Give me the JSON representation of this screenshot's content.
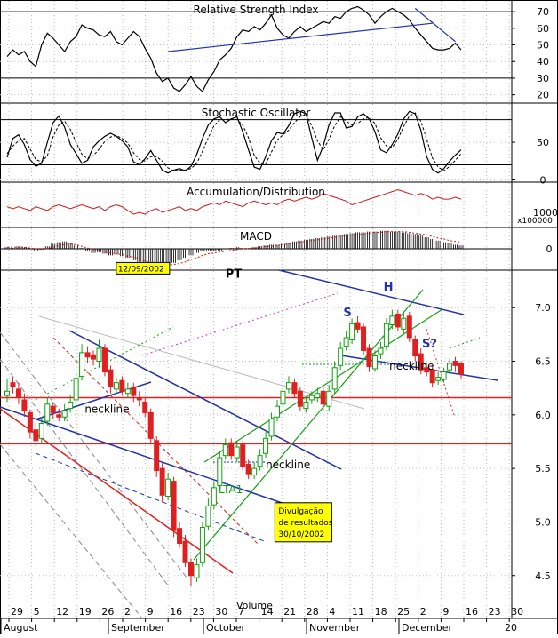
{
  "chart_data": [
    {
      "type": "line",
      "title": "Relative Strength Index",
      "y_ticks": [
        20,
        30,
        40,
        50,
        60,
        70
      ],
      "ylim": [
        15,
        77
      ],
      "reference_levels": [
        30,
        70
      ],
      "series": [
        {
          "values": [
            43,
            47,
            44,
            46,
            40,
            37,
            50,
            57,
            54,
            50,
            46,
            52,
            55,
            62,
            60,
            59,
            56,
            55,
            58,
            52,
            50,
            54,
            58,
            55,
            48,
            42,
            33,
            28,
            30,
            24,
            22,
            26,
            31,
            25,
            22,
            29,
            34,
            41,
            44,
            48,
            55,
            59,
            58,
            61,
            59,
            63,
            68,
            60,
            56,
            54,
            58,
            61,
            58,
            60,
            62,
            64,
            63,
            67,
            66,
            70,
            72,
            73,
            71,
            68,
            63,
            67,
            70,
            72,
            70,
            68,
            65,
            60,
            56,
            52,
            48,
            47,
            47,
            48,
            51,
            47
          ]
        }
      ],
      "annotations": [
        {
          "type": "trendline",
          "from": [
            28,
            46
          ],
          "to": [
            74,
            63
          ],
          "color": "#2233aa"
        },
        {
          "type": "trendline",
          "from": [
            71,
            72
          ],
          "to": [
            78,
            52
          ],
          "color": "#2233aa"
        }
      ]
    },
    {
      "type": "line",
      "title": "Stochastic Oscillator",
      "y_ticks": [
        0,
        50
      ],
      "ylim": [
        -3,
        102
      ],
      "reference_levels": [
        20,
        80
      ],
      "series": [
        {
          "values": [
            30,
            55,
            60,
            47,
            27,
            18,
            22,
            50,
            76,
            85,
            70,
            47,
            35,
            22,
            26,
            44,
            52,
            58,
            62,
            58,
            52,
            44,
            24,
            20,
            28,
            39,
            26,
            13,
            9,
            13,
            15,
            12,
            18,
            34,
            55,
            73,
            81,
            84,
            76,
            81,
            84,
            64,
            40,
            17,
            14,
            31,
            52,
            63,
            61,
            72,
            88,
            91,
            88,
            56,
            26,
            45,
            73,
            89,
            89,
            69,
            71,
            84,
            88,
            81,
            64,
            40,
            36,
            47,
            61,
            81,
            91,
            88,
            66,
            31,
            14,
            9,
            15,
            25,
            33,
            40
          ]
        },
        {
          "values": [
            35,
            45,
            52,
            55,
            41,
            27,
            24,
            32,
            57,
            73,
            78,
            67,
            50,
            34,
            28,
            32,
            41,
            51,
            57,
            59,
            55,
            49,
            36,
            27,
            25,
            31,
            31,
            25,
            16,
            12,
            13,
            13,
            15,
            22,
            38,
            56,
            72,
            80,
            80,
            81,
            80,
            73,
            56,
            33,
            22,
            21,
            37,
            53,
            60,
            66,
            76,
            84,
            87,
            72,
            52,
            40,
            54,
            72,
            84,
            78,
            73,
            75,
            81,
            83,
            75,
            56,
            45,
            43,
            54,
            71,
            85,
            89,
            78,
            54,
            29,
            17,
            12,
            18,
            26,
            35
          ]
        }
      ]
    },
    {
      "type": "line",
      "title": "Accumulation/Distribution",
      "y_ticks": [
        1000
      ],
      "y_tick_suffix": "x100000",
      "ylim": [
        -12,
        12
      ],
      "series": [
        {
          "values": [
            -1,
            -2,
            -1,
            -2,
            -3,
            -1,
            -2,
            -3,
            -1,
            0,
            -1,
            -2,
            -1,
            0,
            -1,
            -2,
            -1,
            -3,
            -1,
            0,
            -1,
            -3,
            -5,
            -4,
            -5,
            -3,
            -2,
            -4,
            -3,
            -2,
            -1,
            -3,
            -2,
            -3,
            -1,
            0,
            1,
            0,
            2,
            1,
            0,
            -1,
            1,
            2,
            1,
            0,
            1,
            0,
            2,
            3,
            2,
            3,
            4,
            3,
            4,
            6,
            5,
            4,
            3,
            2,
            0,
            1,
            2,
            3,
            4,
            5,
            6,
            7,
            8,
            7,
            6,
            5,
            6,
            5,
            3,
            4,
            3,
            3,
            4,
            3
          ]
        }
      ]
    },
    {
      "type": "bar",
      "title": "MACD",
      "y_ticks": [
        0
      ],
      "ylim": [
        -0.26,
        0.26
      ],
      "series": [
        {
          "values": [
            0.02,
            0.01,
            0.03,
            0.02,
            0.0,
            -0.02,
            -0.01,
            0.03,
            0.06,
            0.08,
            0.09,
            0.07,
            0.04,
            0.01,
            -0.02,
            -0.05,
            -0.04,
            -0.06,
            -0.08,
            -0.07,
            -0.09,
            -0.11,
            -0.14,
            -0.16,
            -0.19,
            -0.22,
            -0.24,
            -0.22,
            -0.2,
            -0.17,
            -0.14,
            -0.11,
            -0.08,
            -0.05,
            -0.03,
            -0.02,
            -0.03,
            -0.02,
            0.0,
            0.01,
            0.02,
            0.01,
            0.01,
            0.02,
            0.03,
            0.04,
            0.05,
            0.05,
            0.06,
            0.07,
            0.09,
            0.1,
            0.11,
            0.12,
            0.13,
            0.14,
            0.15,
            0.16,
            0.17,
            0.18,
            0.19,
            0.2,
            0.2,
            0.21,
            0.21,
            0.22,
            0.22,
            0.21,
            0.21,
            0.2,
            0.19,
            0.18,
            0.16,
            0.14,
            0.12,
            0.1,
            0.08,
            0.07,
            0.05,
            0.04
          ]
        },
        {
          "values": [
            0.02,
            0.02,
            0.02,
            0.02,
            0.01,
            0.0,
            -0.01,
            0.0,
            0.02,
            0.04,
            0.05,
            0.06,
            0.05,
            0.03,
            0.01,
            -0.01,
            -0.02,
            -0.04,
            -0.05,
            -0.06,
            -0.07,
            -0.09,
            -0.1,
            -0.12,
            -0.15,
            -0.17,
            -0.19,
            -0.2,
            -0.2,
            -0.19,
            -0.18,
            -0.16,
            -0.13,
            -0.11,
            -0.08,
            -0.06,
            -0.05,
            -0.04,
            -0.03,
            -0.02,
            -0.01,
            0.0,
            0.0,
            0.01,
            0.02,
            0.03,
            0.03,
            0.04,
            0.05,
            0.06,
            0.07,
            0.08,
            0.09,
            0.1,
            0.11,
            0.12,
            0.13,
            0.14,
            0.15,
            0.16,
            0.17,
            0.17,
            0.18,
            0.19,
            0.2,
            0.2,
            0.21,
            0.21,
            0.21,
            0.21,
            0.2,
            0.19,
            0.18,
            0.17,
            0.15,
            0.13,
            0.12,
            0.1,
            0.09,
            0.08
          ]
        }
      ]
    },
    {
      "type": "candlestick",
      "y_ticks": [
        4.5,
        5.0,
        5.5,
        6.0,
        6.5,
        7.0
      ],
      "ylim": [
        4.1,
        7.35
      ],
      "x_ticks": [
        "29",
        "5",
        "12",
        "19",
        "26",
        "2",
        "9",
        "16",
        "23",
        "30",
        "7",
        "14",
        "21",
        "28",
        "4",
        "11",
        "18",
        "25",
        "2",
        "9",
        "16",
        "23",
        "30"
      ],
      "x_extra_tick": "20",
      "months": [
        "August",
        "September",
        "October",
        "November",
        "December"
      ],
      "bottom_label": "Volume",
      "series": [
        {
          "name": "close",
          "values": [
            6.22,
            6.26,
            6.16,
            6.04,
            5.84,
            5.76,
            5.92,
            6.1,
            6.02,
            5.98,
            6.04,
            6.12,
            6.34,
            6.58,
            6.54,
            6.52,
            6.62,
            6.4,
            6.26,
            6.3,
            6.22,
            6.24,
            6.18,
            6.14,
            6.02,
            5.78,
            5.48,
            5.25,
            5.4,
            4.92,
            4.8,
            4.62,
            4.5,
            4.6,
            4.95,
            5.15,
            5.32,
            5.6,
            5.72,
            5.62,
            5.7,
            5.52,
            5.45,
            5.5,
            5.62,
            5.78,
            5.96,
            6.08,
            6.22,
            6.3,
            6.2,
            6.08,
            6.12,
            6.18,
            6.2,
            6.1,
            6.22,
            6.44,
            6.62,
            6.72,
            6.85,
            6.8,
            6.6,
            6.45,
            6.55,
            6.62,
            6.85,
            6.92,
            6.82,
            6.9,
            6.72,
            6.55,
            6.42,
            6.4,
            6.3,
            6.35,
            6.4,
            6.48,
            6.46,
            6.38
          ]
        },
        {
          "name": "open",
          "values": [
            6.18,
            6.3,
            6.24,
            6.14,
            6.02,
            5.86,
            5.78,
            5.94,
            6.08,
            6.0,
            5.98,
            6.06,
            6.14,
            6.36,
            6.58,
            6.56,
            6.5,
            6.62,
            6.42,
            6.24,
            6.32,
            6.2,
            6.26,
            6.16,
            6.12,
            6.02,
            5.76,
            5.5,
            5.24,
            5.38,
            4.94,
            4.82,
            4.62,
            4.48,
            4.62,
            4.96,
            5.16,
            5.34,
            5.62,
            5.74,
            5.6,
            5.72,
            5.54,
            5.44,
            5.52,
            5.64,
            5.8,
            5.98,
            6.1,
            6.24,
            6.3,
            6.22,
            6.06,
            6.14,
            6.16,
            6.22,
            6.08,
            6.24,
            6.46,
            6.64,
            6.7,
            6.86,
            6.82,
            6.62,
            6.43,
            6.57,
            6.64,
            6.84,
            6.94,
            6.8,
            6.92,
            6.7,
            6.57,
            6.44,
            6.42,
            6.32,
            6.33,
            6.42,
            6.5,
            6.48
          ]
        },
        {
          "name": "high",
          "values": [
            6.34,
            6.35,
            6.3,
            6.2,
            6.05,
            5.92,
            5.98,
            6.16,
            6.12,
            6.06,
            6.1,
            6.18,
            6.4,
            6.66,
            6.64,
            6.6,
            6.7,
            6.66,
            6.46,
            6.35,
            6.36,
            6.3,
            6.3,
            6.22,
            6.16,
            6.06,
            5.8,
            5.55,
            5.46,
            5.42,
            5.0,
            4.88,
            4.66,
            4.66,
            5.0,
            5.22,
            5.38,
            5.66,
            5.78,
            5.78,
            5.76,
            5.76,
            5.58,
            5.56,
            5.68,
            5.84,
            6.02,
            6.14,
            6.28,
            6.36,
            6.34,
            6.26,
            6.16,
            6.22,
            6.25,
            6.26,
            6.28,
            6.5,
            6.68,
            6.78,
            6.9,
            6.92,
            6.86,
            6.66,
            6.6,
            6.68,
            6.9,
            6.98,
            6.98,
            6.96,
            6.96,
            6.74,
            6.62,
            6.48,
            6.46,
            6.4,
            6.44,
            6.52,
            6.54,
            6.5
          ]
        },
        {
          "name": "low",
          "values": [
            6.12,
            6.2,
            6.1,
            5.98,
            5.78,
            5.7,
            5.74,
            5.9,
            5.96,
            5.94,
            5.94,
            6.02,
            6.1,
            6.32,
            6.48,
            6.46,
            6.44,
            6.36,
            6.2,
            6.2,
            6.18,
            6.16,
            6.12,
            6.08,
            5.98,
            5.74,
            5.42,
            5.18,
            5.2,
            4.86,
            4.76,
            4.58,
            4.4,
            4.44,
            4.58,
            4.92,
            5.12,
            5.3,
            5.58,
            5.58,
            5.56,
            5.48,
            5.4,
            5.4,
            5.48,
            5.6,
            5.76,
            5.94,
            6.06,
            6.2,
            6.16,
            6.04,
            6.02,
            6.1,
            6.12,
            6.04,
            6.04,
            6.2,
            6.42,
            6.6,
            6.66,
            6.76,
            6.56,
            6.4,
            6.4,
            6.52,
            6.6,
            6.8,
            6.78,
            6.76,
            6.68,
            6.5,
            6.38,
            6.36,
            6.26,
            6.28,
            6.3,
            6.38,
            6.4,
            6.34
          ]
        }
      ],
      "horizontal_levels": [
        {
          "y": 6.16,
          "color": "#e02020"
        },
        {
          "y": 5.73,
          "color": "#e02020"
        }
      ],
      "annotations": [
        {
          "text": "neckline",
          "x": 13.5,
          "y": 6.02
        },
        {
          "text": "neckline",
          "x": 45,
          "y": 5.5
        },
        {
          "text": "neckline",
          "x": 66.5,
          "y": 6.42
        },
        {
          "text": "S",
          "x": 58.5,
          "y": 6.92,
          "color": "#2233aa"
        },
        {
          "text": "H",
          "x": 65.5,
          "y": 7.16,
          "color": "#2233aa"
        },
        {
          "text": "S?",
          "x": 72.2,
          "y": 6.63,
          "color": "#2233aa"
        },
        {
          "text": "PT",
          "x": 38,
          "y": 7.28
        },
        {
          "text": "LTA1",
          "x": 36.8,
          "y": 5.27,
          "color": "#10a010"
        },
        {
          "text": "12/09/2002",
          "x": 19.3,
          "y": 7.33,
          "box": "#ffff00"
        },
        {
          "lines": [
            "Divulgação",
            "de resultados",
            "30/10/2002"
          ],
          "x": 46.9,
          "y": 5.08,
          "box": "#ffff00"
        }
      ]
    }
  ]
}
